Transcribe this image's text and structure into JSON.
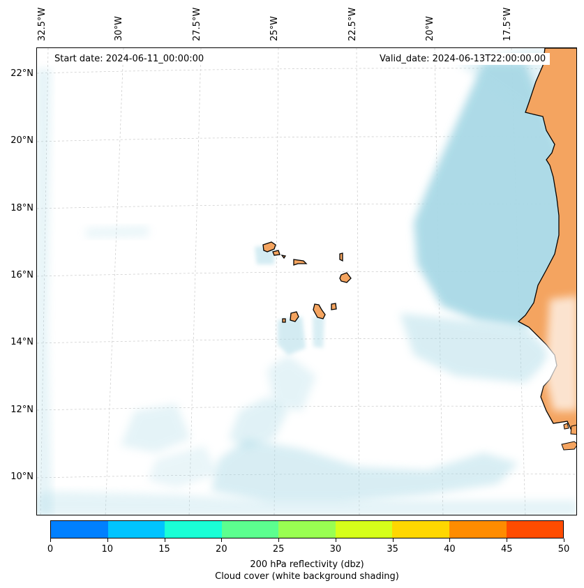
{
  "map": {
    "start_date": "Start date: 2024-06-11_00:00:00",
    "valid_date": "Valid_date: 2024-06-13T22:00:00.00",
    "lon_labels": [
      "32.5°W",
      "30°W",
      "27.5°W",
      "25°W",
      "22.5°W",
      "20°W",
      "17.5°W"
    ],
    "lat_labels": [
      "22°N",
      "20°N",
      "18°N",
      "16°N",
      "14°N",
      "12°N",
      "10°N"
    ],
    "land_color": "#f4a460",
    "cloud_color": "#a9d9e6",
    "coast_color": "#000000"
  },
  "colorbar": {
    "ticks": [
      "0",
      "10",
      "15",
      "20",
      "25",
      "30",
      "35",
      "40",
      "45",
      "50"
    ],
    "colors": [
      "#0080ff",
      "#00c4ff",
      "#1affd6",
      "#5cff8f",
      "#99ff52",
      "#d6ff1a",
      "#ffd700",
      "#ff8c00",
      "#ff4c00"
    ],
    "label": "200 hPa reflectivity (dbz)",
    "sublabel": "Cloud cover (white background shading)"
  }
}
